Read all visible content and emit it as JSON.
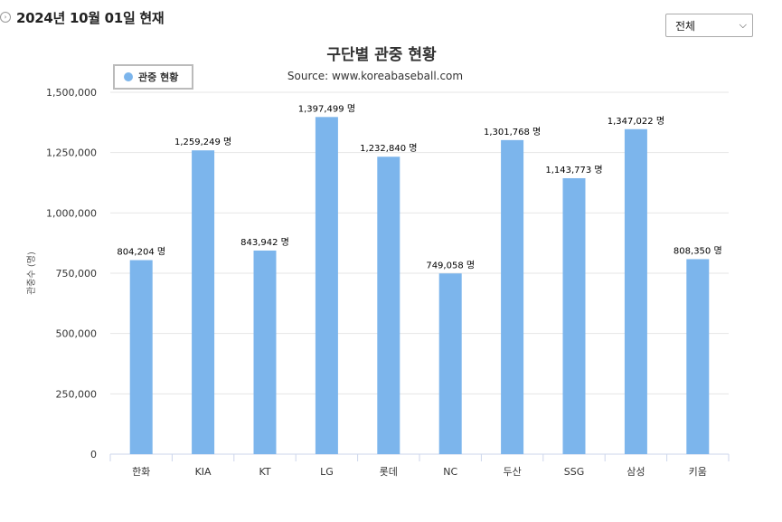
{
  "header": {
    "title": "2024년 10월 01일 현재",
    "icon": "circle-arrow-icon"
  },
  "filter": {
    "selected": "전체",
    "icon": "chevron-down-icon"
  },
  "chart_data": {
    "type": "bar",
    "title": "구단별 관중 현황",
    "subtitle": "Source: www.koreabaseball.com",
    "xlabel": "",
    "ylabel": "관중수 (명)",
    "ylim": [
      0,
      1500000
    ],
    "yticks": [
      0,
      250000,
      500000,
      750000,
      1000000,
      1250000,
      1500000
    ],
    "ytick_labels": [
      "0",
      "250,000",
      "500,000",
      "750,000",
      "1,000,000",
      "1,250,000",
      "1,500,000"
    ],
    "categories": [
      "한화",
      "KIA",
      "KT",
      "LG",
      "롯데",
      "NC",
      "두산",
      "SSG",
      "삼성",
      "키움"
    ],
    "series": [
      {
        "name": "관중 현황",
        "color": "#7cb5ec",
        "values": [
          804204,
          1259249,
          843942,
          1397499,
          1232840,
          749058,
          1301768,
          1143773,
          1347022,
          808350
        ],
        "labels": [
          "804,204 명",
          "1,259,249 명",
          "843,942 명",
          "1,397,499 명",
          "1,232,840 명",
          "749,058 명",
          "1,301,768 명",
          "1,143,773 명",
          "1,347,022 명",
          "808,350 명"
        ]
      }
    ],
    "grid": true,
    "legend": "top-left"
  }
}
